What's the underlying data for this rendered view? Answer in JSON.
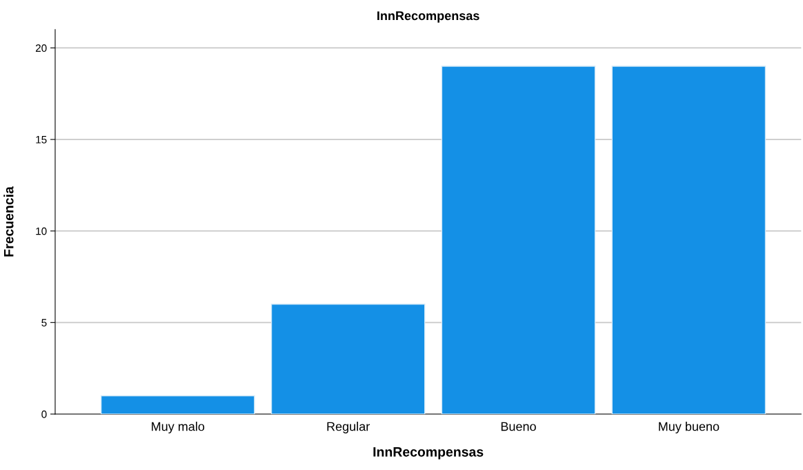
{
  "chart_data": {
    "type": "bar",
    "title": "InnRecompensas",
    "xlabel": "InnRecompensas",
    "ylabel": "Frecuencia",
    "categories": [
      "Muy malo",
      "Regular",
      "Bueno",
      "Muy bueno"
    ],
    "values": [
      1,
      6,
      19,
      19
    ],
    "color": "#1490e6",
    "ylim": [
      0,
      21
    ],
    "yticks": [
      0,
      5,
      10,
      15,
      20
    ],
    "grid": "y",
    "legend": false
  }
}
